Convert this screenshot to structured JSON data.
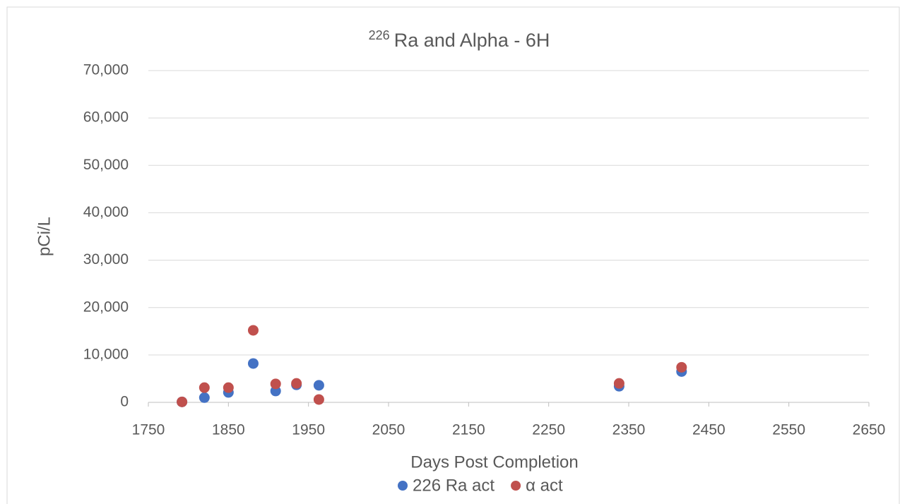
{
  "chart_data": {
    "type": "scatter",
    "title_superscript": "226",
    "title": "Ra and Alpha - 6H",
    "x_label": "Days Post Completion",
    "y_label": "pCi/L",
    "xlim": [
      1750,
      2650
    ],
    "xticks": [
      1750,
      1850,
      1950,
      2050,
      2150,
      2250,
      2350,
      2450,
      2550,
      2650
    ],
    "ylim": [
      0,
      70000
    ],
    "yticks": [
      0,
      {
        "value": 10000,
        "label": "10,000"
      },
      {
        "value": 20000,
        "label": "20,000"
      },
      {
        "value": 30000,
        "label": "30,000"
      },
      {
        "value": 40000,
        "label": "40,000"
      },
      {
        "value": 50000,
        "label": "50,000"
      },
      {
        "value": 60000,
        "label": "60,000"
      },
      {
        "value": 70000,
        "label": "70,000"
      }
    ],
    "grid": true,
    "legend": "bottom",
    "series": [
      {
        "name": "226 Ra act",
        "color": "#4472c4",
        "x": [
          1792,
          1820,
          1850,
          1881,
          1909,
          1935,
          1963,
          2338,
          2416
        ],
        "values": [
          100,
          1000,
          2100,
          8200,
          2400,
          3700,
          3600,
          3400,
          6500
        ]
      },
      {
        "name": "α act",
        "color": "#c0504d",
        "x": [
          1792,
          1820,
          1850,
          1881,
          1909,
          1935,
          1963,
          2338,
          2416
        ],
        "values": [
          100,
          3100,
          3100,
          15200,
          3900,
          4000,
          600,
          4000,
          7400
        ]
      }
    ]
  }
}
